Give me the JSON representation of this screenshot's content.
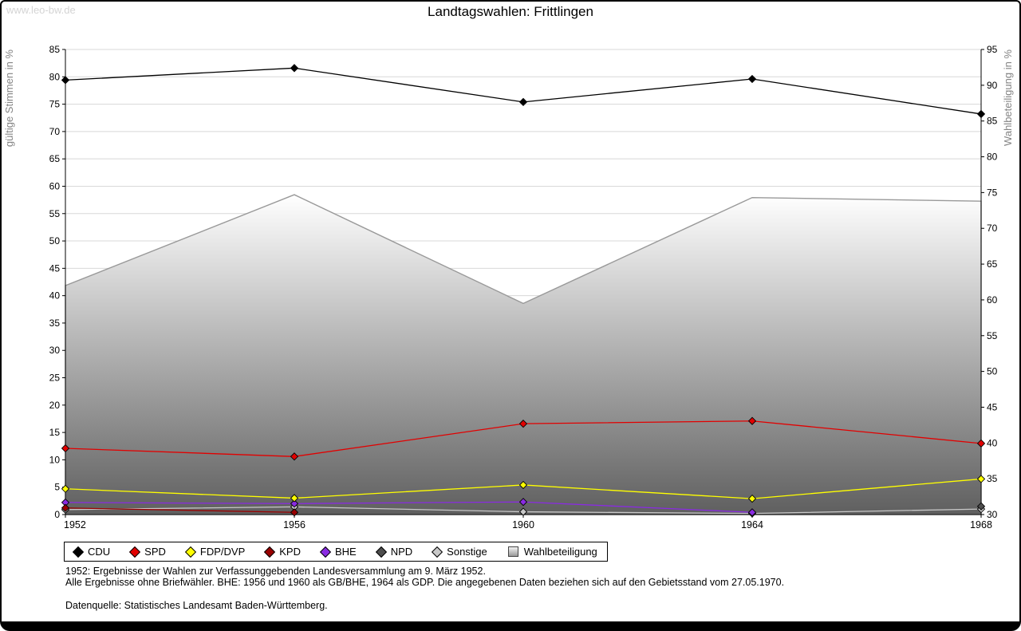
{
  "watermark": "www.leo-bw.de",
  "notes": {
    "line1": "1952: Ergebnisse der Wahlen zur Verfassunggebenden Landesversammlung am 9. März 1952.",
    "line2": "Alle Ergebnisse ohne Briefwähler. BHE: 1956 und 1960 als GB/BHE, 1964 als GDP. Die angegebenen Daten beziehen sich auf den Gebietsstand vom 27.05.1970.",
    "source": "Datenquelle: Statistisches Landesamt Baden-Württemberg."
  },
  "chart_data": {
    "type": "line",
    "title": "Landtagswahlen: Frittlingen",
    "categories": [
      "1952",
      "1956",
      "1960",
      "1964",
      "1968"
    ],
    "left_axis": {
      "label": "gültige Stimmen in %",
      "min": 0,
      "max": 85,
      "step": 5
    },
    "right_axis": {
      "label": "Wahlbeteiligung in %",
      "min": 30,
      "max": 95,
      "step": 5
    },
    "grid": true,
    "legend_position": "bottom",
    "grid_color": "#d8d8d8",
    "area_gradient": [
      "#ffffff",
      "#5f5f5f"
    ],
    "series": [
      {
        "name": "CDU",
        "type": "line",
        "axis": "left",
        "color": "#000000",
        "values": [
          79.4,
          81.6,
          75.4,
          79.6,
          73.2
        ]
      },
      {
        "name": "SPD",
        "type": "line",
        "axis": "left",
        "color": "#e20000",
        "values": [
          12.1,
          10.6,
          16.6,
          17.1,
          13.0
        ]
      },
      {
        "name": "FDP/DVP",
        "type": "line",
        "axis": "left",
        "color": "#ffff00",
        "values": [
          4.7,
          3.0,
          5.4,
          2.9,
          6.5
        ]
      },
      {
        "name": "KPD",
        "type": "line",
        "axis": "left",
        "color": "#990000",
        "values": [
          1.2,
          0.4,
          null,
          null,
          null
        ]
      },
      {
        "name": "BHE",
        "type": "line",
        "axis": "left",
        "color": "#8a2be2",
        "values": [
          2.2,
          2.0,
          2.3,
          0.4,
          null
        ]
      },
      {
        "name": "NPD",
        "type": "line",
        "axis": "left",
        "color": "#4d4d4d",
        "values": [
          null,
          null,
          null,
          null,
          1.5
        ]
      },
      {
        "name": "Sonstige",
        "type": "line",
        "axis": "left",
        "color": "#c8c8c8",
        "values": [
          0.9,
          1.4,
          0.5,
          0.2,
          1.0
        ]
      },
      {
        "name": "Wahlbeteiligung",
        "type": "area",
        "axis": "right",
        "color": "#999999",
        "values": [
          62.0,
          74.7,
          59.5,
          74.3,
          73.8
        ]
      }
    ]
  }
}
